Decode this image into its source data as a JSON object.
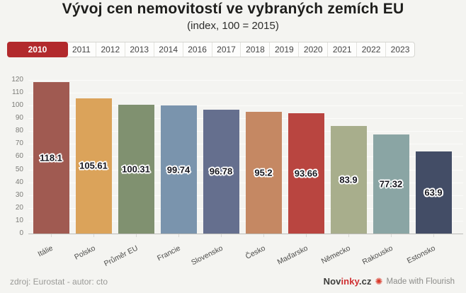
{
  "header": {
    "title": "Vývoj cen nemovitostí ve vybraných zemích EU",
    "subtitle": "(index, 100 = 2015)"
  },
  "tabs": {
    "years": [
      "2010",
      "2011",
      "2012",
      "2013",
      "2014",
      "2016",
      "2017",
      "2018",
      "2019",
      "2020",
      "2021",
      "2022",
      "2023"
    ],
    "active": "2010",
    "active_color": "#b22a2d"
  },
  "chart_data": {
    "type": "bar",
    "title": "Vývoj cen nemovitostí ve vybraných zemích EU",
    "subtitle": "(index, 100 = 2015)",
    "categories": [
      "Itálie",
      "Polsko",
      "Průměr EU",
      "Francie",
      "Slovensko",
      "Česko",
      "Maďarsko",
      "Německo",
      "Rakousko",
      "Estonsko"
    ],
    "values": [
      118.1,
      105.61,
      100.31,
      99.74,
      96.78,
      95.2,
      93.66,
      83.9,
      77.32,
      63.9
    ],
    "value_labels": [
      "118.1",
      "105.61",
      "100.31",
      "99.74",
      "96.78",
      "95.2",
      "93.66",
      "83.9",
      "77.32",
      "63.9"
    ],
    "bar_colors": [
      "#a05a51",
      "#dba35a",
      "#809170",
      "#7a94ad",
      "#656f8e",
      "#c58863",
      "#b94540",
      "#a8ae8c",
      "#8aa5a4",
      "#434d66"
    ],
    "xlabel": "",
    "ylabel": "",
    "ylim": [
      0,
      120
    ],
    "ytick_step": 10,
    "grid": true,
    "legend_position": "none"
  },
  "footer": {
    "source": "zdroj: Eurostat - autor: cto",
    "brand": {
      "pre": "Nov",
      "highlight": "inky",
      "post": ".cz"
    },
    "flourish_credit": "Made with Flourish"
  }
}
